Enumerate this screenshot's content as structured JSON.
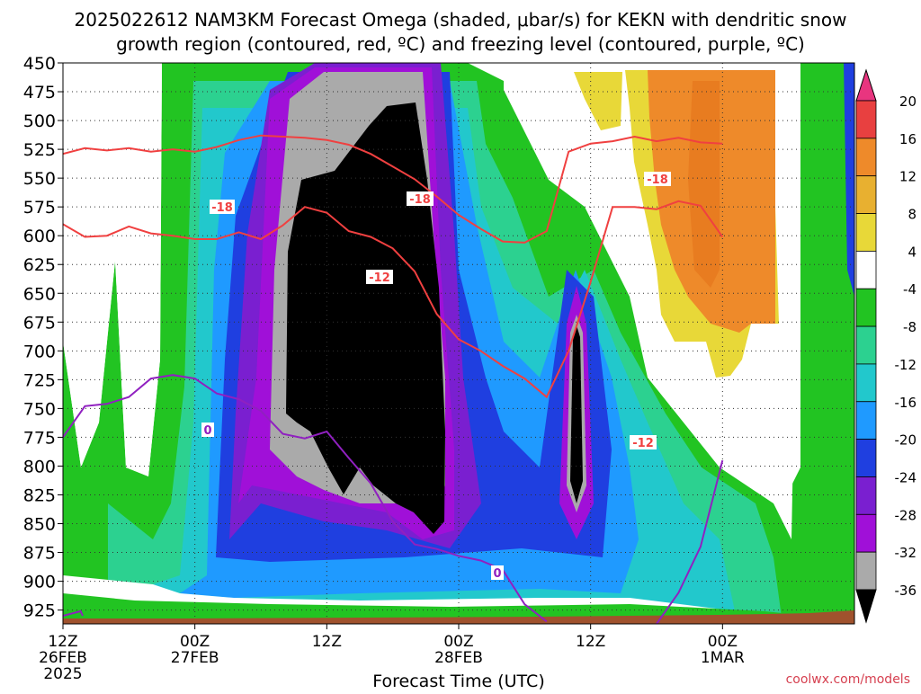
{
  "chart_data": {
    "type": "heatmap",
    "title_line1": "2025022612 NAM3KM Forecast Omega (shaded, μbar/s) for KEKN with dendritic snow",
    "title_line2": "growth region (contoured, red, ºC) and freezing level (contoured, purple, ºC)",
    "xlabel": "Forecast Time (UTC)",
    "watermark": "coolwx.com/models",
    "y_axis": {
      "label": "",
      "inverted": true,
      "range": [
        450,
        937
      ],
      "ticks": [
        450,
        475,
        500,
        525,
        550,
        575,
        600,
        625,
        650,
        675,
        700,
        725,
        750,
        775,
        800,
        825,
        850,
        875,
        900,
        925
      ]
    },
    "x_axis": {
      "range_hours": [
        0,
        36
      ],
      "ticks": [
        {
          "hour": 0,
          "lines": [
            "12Z",
            "26FEB",
            "2025"
          ]
        },
        {
          "hour": 6,
          "lines": [
            "00Z",
            "27FEB"
          ]
        },
        {
          "hour": 12,
          "lines": [
            "12Z"
          ]
        },
        {
          "hour": 18,
          "lines": [
            "00Z",
            "28FEB"
          ]
        },
        {
          "hour": 24,
          "lines": [
            "12Z"
          ]
        },
        {
          "hour": 30,
          "lines": [
            "00Z",
            "1MAR"
          ]
        }
      ]
    },
    "colorbar": {
      "labels": [
        "20",
        "16",
        "12",
        "8",
        "4",
        "-4",
        "-8",
        "-12",
        "-16",
        "-20",
        "-24",
        "-28",
        "-32",
        "-36"
      ],
      "colors": [
        "#e8357f",
        "#e84040",
        "#ee8a2a",
        "#e8b030",
        "#e8d838",
        "#ffffff",
        "#22c422",
        "#2cd190",
        "#22c8cc",
        "#1f9aff",
        "#1f3fe0",
        "#7a1fd0",
        "#a010d8",
        "#aaaaaa",
        "#000000"
      ]
    },
    "contour_labels": [
      {
        "text": "-18",
        "color": "#f04040"
      },
      {
        "text": "-18",
        "color": "#f04040"
      },
      {
        "text": "-18",
        "color": "#f04040"
      },
      {
        "text": "-12",
        "color": "#f04040"
      },
      {
        "text": "-12",
        "color": "#f04040"
      },
      {
        "text": "0",
        "color": "#9020c0"
      },
      {
        "text": "0",
        "color": "#9020c0"
      }
    ],
    "dgz_minus18_top": [
      [
        0,
        529
      ],
      [
        1,
        524
      ],
      [
        2,
        526
      ],
      [
        3,
        524
      ],
      [
        4,
        527
      ],
      [
        5,
        525
      ],
      [
        6,
        527
      ],
      [
        7,
        523
      ],
      [
        8,
        517
      ],
      [
        9,
        513
      ],
      [
        10,
        514
      ],
      [
        11,
        515
      ],
      [
        12,
        517
      ],
      [
        13,
        521
      ],
      [
        14,
        529
      ],
      [
        15,
        540
      ],
      [
        16,
        551
      ],
      [
        17,
        566
      ],
      [
        18,
        582
      ],
      [
        19,
        594
      ],
      [
        20,
        605
      ],
      [
        21,
        606
      ],
      [
        22,
        596
      ],
      [
        23,
        527
      ],
      [
        24,
        520
      ],
      [
        25,
        518
      ],
      [
        26,
        514
      ],
      [
        27,
        518
      ],
      [
        28,
        515
      ],
      [
        29,
        519
      ],
      [
        30,
        520
      ]
    ],
    "dgz_minus12": [
      [
        0,
        590
      ],
      [
        1,
        601
      ],
      [
        2,
        600
      ],
      [
        3,
        592
      ],
      [
        4,
        598
      ],
      [
        5,
        600
      ],
      [
        6,
        603
      ],
      [
        7,
        603
      ],
      [
        8,
        597
      ],
      [
        9,
        603
      ],
      [
        10,
        591
      ],
      [
        11,
        575
      ],
      [
        12,
        580
      ],
      [
        13,
        596
      ],
      [
        14,
        601
      ],
      [
        15,
        611
      ],
      [
        16,
        631
      ],
      [
        17,
        668
      ],
      [
        18,
        690
      ],
      [
        19,
        700
      ],
      [
        20,
        713
      ],
      [
        21,
        724
      ],
      [
        22,
        740
      ],
      [
        23,
        700
      ],
      [
        24,
        640
      ],
      [
        25,
        575
      ],
      [
        26,
        575
      ],
      [
        27,
        577
      ],
      [
        28,
        570
      ],
      [
        29,
        574
      ],
      [
        30,
        601
      ]
    ],
    "freezing_level": [
      [
        0,
        775
      ],
      [
        1,
        748
      ],
      [
        2,
        746
      ],
      [
        3,
        740
      ],
      [
        4,
        724
      ],
      [
        5,
        721
      ],
      [
        6,
        724
      ],
      [
        7,
        737
      ],
      [
        8,
        742
      ],
      [
        9,
        752
      ],
      [
        10,
        772
      ],
      [
        11,
        776
      ],
      [
        12,
        770
      ],
      [
        13,
        793
      ],
      [
        14,
        815
      ],
      [
        15,
        848
      ],
      [
        16,
        868
      ],
      [
        17,
        872
      ],
      [
        18,
        878
      ],
      [
        19,
        882
      ],
      [
        20,
        890
      ],
      [
        21,
        920
      ],
      [
        22,
        935
      ]
    ],
    "freezing_level_b": [
      [
        27,
        937
      ],
      [
        28,
        910
      ],
      [
        29,
        870
      ],
      [
        30,
        795
      ]
    ],
    "freezing_level_c": [
      [
        0,
        930
      ],
      [
        0.8,
        926
      ],
      [
        0.9,
        930
      ]
    ]
  }
}
